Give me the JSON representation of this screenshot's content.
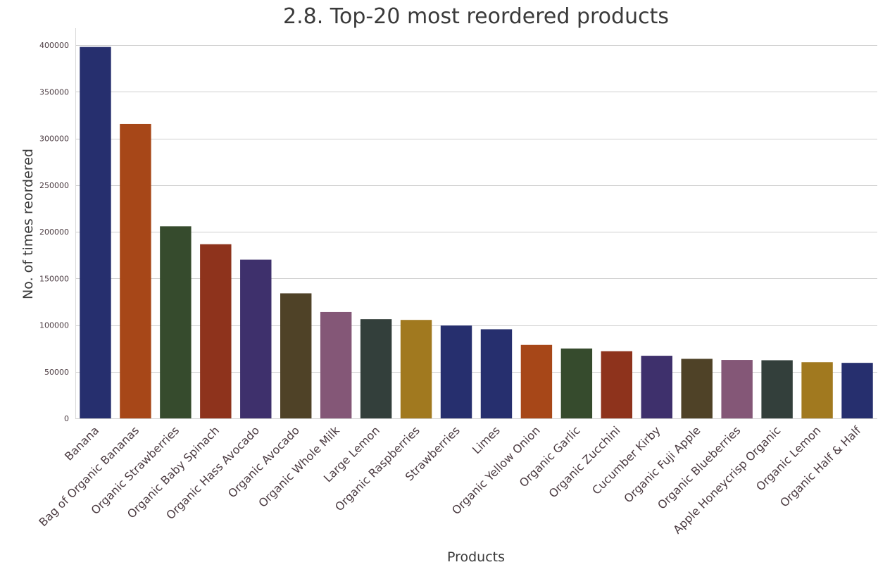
{
  "chart_data": {
    "type": "bar",
    "title": "2.8. Top-20 most reordered products",
    "xlabel": "Products",
    "ylabel": "No. of times reordered",
    "ylim": [
      0,
      420000
    ],
    "yticks": [
      0,
      50000,
      100000,
      150000,
      200000,
      250000,
      300000,
      350000,
      400000
    ],
    "grid": true,
    "categories": [
      "Banana",
      "Bag of Organic Bananas",
      "Organic Strawberries",
      "Organic Baby Spinach",
      "Organic Hass Avocado",
      "Organic Avocado",
      "Organic Whole Milk",
      "Large Lemon",
      "Organic Raspberries",
      "Strawberries",
      "Limes",
      "Organic Yellow Onion",
      "Organic Garlic",
      "Organic Zucchini",
      "Cucumber Kirby",
      "Organic Fuji Apple",
      "Organic Blueberries",
      "Apple Honeycrisp Organic",
      "Organic Lemon",
      "Organic Half & Half"
    ],
    "values": [
      398000,
      315500,
      205800,
      186600,
      170100,
      134000,
      114000,
      106300,
      105500,
      99500,
      95500,
      78700,
      74900,
      72000,
      67100,
      63800,
      62600,
      62300,
      60200,
      59500
    ],
    "colors": [
      "#262f6e",
      "#a74718",
      "#364b2d",
      "#8e331c",
      "#3e306c",
      "#4f4227",
      "#845777",
      "#333f3b",
      "#a1791f",
      "#262f6e",
      "#262f6e",
      "#a74718",
      "#364b2d",
      "#8e331c",
      "#3e306c",
      "#4f4227",
      "#845777",
      "#333f3b",
      "#a1791f",
      "#262f6e"
    ]
  }
}
